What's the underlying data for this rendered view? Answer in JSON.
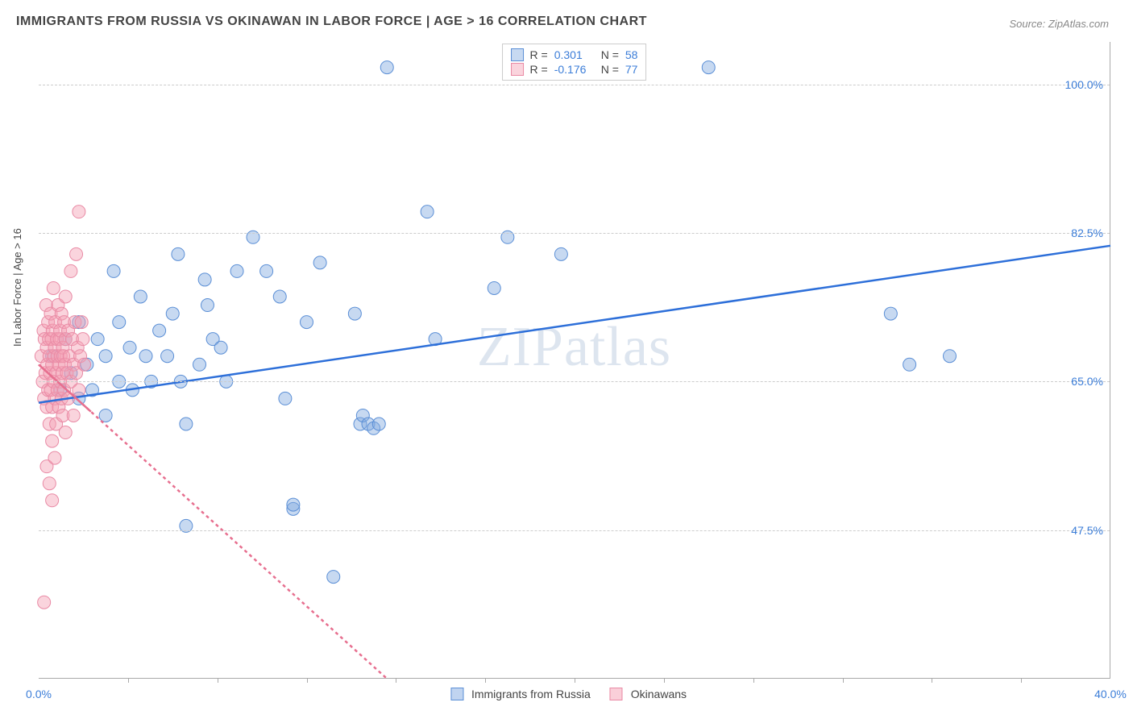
{
  "title": "IMMIGRANTS FROM RUSSIA VS OKINAWAN IN LABOR FORCE | AGE > 16 CORRELATION CHART",
  "source": "Source: ZipAtlas.com",
  "ylabel": "In Labor Force | Age > 16",
  "watermark": "ZIPatlas",
  "chart": {
    "type": "scatter",
    "xlim": [
      0,
      40
    ],
    "ylim": [
      30,
      105
    ],
    "yticks": [
      {
        "v": 47.5,
        "label": "47.5%"
      },
      {
        "v": 65.0,
        "label": "65.0%"
      },
      {
        "v": 82.5,
        "label": "82.5%"
      },
      {
        "v": 100.0,
        "label": "100.0%"
      }
    ],
    "xtick_ends": [
      {
        "v": 0,
        "label": "0.0%"
      },
      {
        "v": 40,
        "label": "40.0%"
      }
    ],
    "xtick_marks": [
      3.33,
      6.67,
      10,
      13.33,
      16.67,
      20,
      23.33,
      26.67,
      30,
      33.33,
      36.67
    ],
    "grid_color": "#cccccc",
    "border_color": "#aaaaaa",
    "background_color": "#ffffff"
  },
  "series": [
    {
      "name": "Immigrants from Russia",
      "R": "0.301",
      "N": "58",
      "point_fill": "rgba(130,170,225,0.45)",
      "point_stroke": "#5b8fd6",
      "line_color": "#2d6fd9",
      "line_dash": "none",
      "marker_r": 8,
      "trend": {
        "x1": 0,
        "y1": 62.5,
        "x2": 40,
        "y2": 81
      },
      "points": [
        [
          0.5,
          68
        ],
        [
          0.8,
          64
        ],
        [
          1.0,
          70
        ],
        [
          1.2,
          66
        ],
        [
          1.5,
          72
        ],
        [
          1.5,
          63
        ],
        [
          1.8,
          67
        ],
        [
          2.0,
          64
        ],
        [
          2.2,
          70
        ],
        [
          2.5,
          68
        ],
        [
          2.5,
          61
        ],
        [
          2.8,
          78
        ],
        [
          3.0,
          65
        ],
        [
          3.0,
          72
        ],
        [
          3.4,
          69
        ],
        [
          3.5,
          64
        ],
        [
          3.8,
          75
        ],
        [
          4.0,
          68
        ],
        [
          4.2,
          65
        ],
        [
          4.5,
          71
        ],
        [
          4.8,
          68
        ],
        [
          5.0,
          73
        ],
        [
          5.2,
          80
        ],
        [
          5.3,
          65
        ],
        [
          5.5,
          60
        ],
        [
          5.5,
          48
        ],
        [
          6.0,
          67
        ],
        [
          6.2,
          77
        ],
        [
          6.3,
          74
        ],
        [
          6.5,
          70
        ],
        [
          6.8,
          69
        ],
        [
          7.0,
          65
        ],
        [
          7.4,
          78
        ],
        [
          8.0,
          82
        ],
        [
          8.5,
          78
        ],
        [
          9.0,
          75
        ],
        [
          9.2,
          63
        ],
        [
          9.5,
          50
        ],
        [
          9.5,
          50.5
        ],
        [
          10.0,
          72
        ],
        [
          10.5,
          79
        ],
        [
          11.0,
          42
        ],
        [
          11.8,
          73
        ],
        [
          12.0,
          60
        ],
        [
          12.1,
          61
        ],
        [
          12.3,
          60
        ],
        [
          12.5,
          59.5
        ],
        [
          12.7,
          60
        ],
        [
          13.0,
          102
        ],
        [
          14.5,
          85
        ],
        [
          14.8,
          70
        ],
        [
          17.0,
          76
        ],
        [
          17.5,
          82
        ],
        [
          19.5,
          80
        ],
        [
          25.0,
          102
        ],
        [
          31.8,
          73
        ],
        [
          32.5,
          67
        ],
        [
          34.0,
          68
        ]
      ]
    },
    {
      "name": "Okinawans",
      "R": "-0.176",
      "N": "77",
      "point_fill": "rgba(245,160,180,0.45)",
      "point_stroke": "#e98aa5",
      "line_color": "#e76f8f",
      "line_dash": "4,4",
      "marker_r": 8,
      "trend": {
        "x1": 0,
        "y1": 67,
        "x2": 13,
        "y2": 30
      },
      "points": [
        [
          0.1,
          68
        ],
        [
          0.15,
          65
        ],
        [
          0.18,
          71
        ],
        [
          0.2,
          63
        ],
        [
          0.22,
          70
        ],
        [
          0.25,
          66
        ],
        [
          0.28,
          74
        ],
        [
          0.3,
          62
        ],
        [
          0.3,
          69
        ],
        [
          0.32,
          67
        ],
        [
          0.35,
          72
        ],
        [
          0.35,
          64
        ],
        [
          0.38,
          70
        ],
        [
          0.4,
          60
        ],
        [
          0.4,
          68
        ],
        [
          0.42,
          66
        ],
        [
          0.45,
          73
        ],
        [
          0.45,
          64
        ],
        [
          0.48,
          70
        ],
        [
          0.5,
          67
        ],
        [
          0.5,
          62
        ],
        [
          0.5,
          58
        ],
        [
          0.52,
          71
        ],
        [
          0.55,
          65
        ],
        [
          0.55,
          76
        ],
        [
          0.58,
          68
        ],
        [
          0.6,
          63
        ],
        [
          0.6,
          69
        ],
        [
          0.62,
          72
        ],
        [
          0.65,
          66
        ],
        [
          0.65,
          60
        ],
        [
          0.68,
          70
        ],
        [
          0.7,
          68
        ],
        [
          0.7,
          64
        ],
        [
          0.72,
          74
        ],
        [
          0.75,
          67
        ],
        [
          0.75,
          62
        ],
        [
          0.78,
          70
        ],
        [
          0.8,
          65
        ],
        [
          0.8,
          71
        ],
        [
          0.82,
          68
        ],
        [
          0.85,
          63
        ],
        [
          0.85,
          73
        ],
        [
          0.88,
          66
        ],
        [
          0.9,
          69
        ],
        [
          0.9,
          61
        ],
        [
          0.92,
          68
        ],
        [
          0.95,
          72
        ],
        [
          0.95,
          64
        ],
        [
          0.98,
          67
        ],
        [
          1.0,
          70
        ],
        [
          1.0,
          75
        ],
        [
          1.0,
          59
        ],
        [
          1.05,
          66
        ],
        [
          1.1,
          71
        ],
        [
          1.1,
          63
        ],
        [
          1.15,
          68
        ],
        [
          1.2,
          65
        ],
        [
          1.2,
          78
        ],
        [
          1.25,
          70
        ],
        [
          1.3,
          67
        ],
        [
          1.3,
          61
        ],
        [
          1.35,
          72
        ],
        [
          1.4,
          66
        ],
        [
          1.4,
          80
        ],
        [
          1.45,
          69
        ],
        [
          1.5,
          64
        ],
        [
          1.5,
          85
        ],
        [
          1.55,
          68
        ],
        [
          1.6,
          72
        ],
        [
          1.65,
          70
        ],
        [
          1.7,
          67
        ],
        [
          0.3,
          55
        ],
        [
          0.4,
          53
        ],
        [
          0.5,
          51
        ],
        [
          0.6,
          56
        ],
        [
          0.2,
          39
        ]
      ]
    }
  ],
  "legend_bottom": [
    {
      "label": "Immigrants from Russia",
      "fill": "rgba(130,170,225,0.5)",
      "stroke": "#5b8fd6"
    },
    {
      "label": "Okinawans",
      "fill": "rgba(245,160,180,0.5)",
      "stroke": "#e98aa5"
    }
  ]
}
